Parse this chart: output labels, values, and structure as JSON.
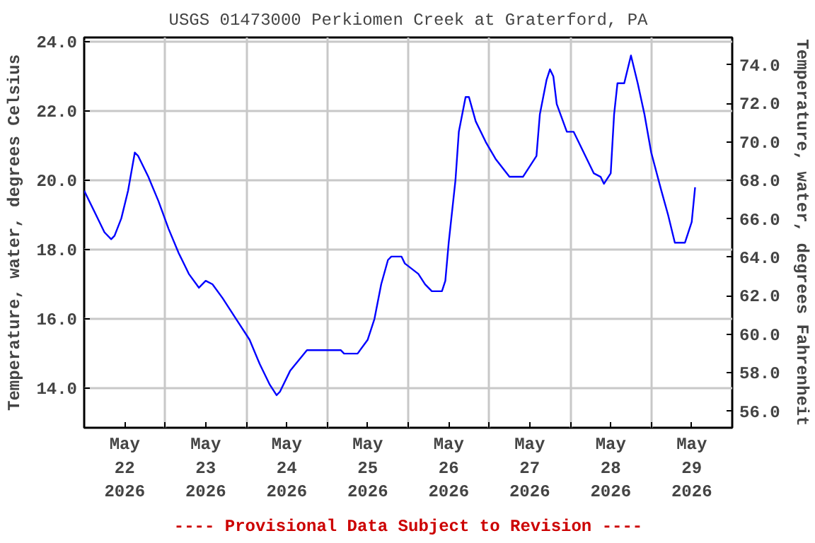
{
  "chart_data": {
    "type": "line",
    "title": "USGS 01473000 Perkiomen Creek at Graterford, PA",
    "ylabel": "Temperature, water, degrees Celsius",
    "y2label": "Temperature, water, degrees Fahrenheit",
    "annotations": [
      "---- Provisional Data Subject to Revision ----"
    ],
    "grid": true,
    "line_style": "solid",
    "xlim": [
      "2026-05-22T00:00",
      "2026-05-30T00:00"
    ],
    "xticks": [
      {
        "value": "2026-05-22T12:00",
        "label": "May\n22\n2026"
      },
      {
        "value": "2026-05-23T12:00",
        "label": "May\n23\n2026"
      },
      {
        "value": "2026-05-24T12:00",
        "label": "May\n24\n2026"
      },
      {
        "value": "2026-05-25T12:00",
        "label": "May\n25\n2026"
      },
      {
        "value": "2026-05-26T12:00",
        "label": "May\n26\n2026"
      },
      {
        "value": "2026-05-27T12:00",
        "label": "May\n27\n2026"
      },
      {
        "value": "2026-05-28T12:00",
        "label": "May\n28\n2026"
      },
      {
        "value": "2026-05-29T12:00",
        "label": "May\n29\n2026"
      },
      {
        "value": "2026-05-23T00:00",
        "label": null
      },
      {
        "value": "2026-05-24T00:00",
        "label": null
      },
      {
        "value": "2026-05-25T00:00",
        "label": null
      },
      {
        "value": "2026-05-26T00:00",
        "label": null
      },
      {
        "value": "2026-05-27T00:00",
        "label": null
      },
      {
        "value": "2026-05-28T00:00",
        "label": null
      },
      {
        "value": "2026-05-29T00:00",
        "label": null
      }
    ],
    "ylim": [
      12.86,
      24.12
    ],
    "yticks": [
      {
        "value": 14,
        "label": "14.0"
      },
      {
        "value": 16,
        "label": "16.0"
      },
      {
        "value": 18,
        "label": "18.0"
      },
      {
        "value": 20,
        "label": "20.0"
      },
      {
        "value": 22,
        "label": "22.0"
      },
      {
        "value": 24,
        "label": "24.0"
      }
    ],
    "y2lim": [
      55.15,
      75.42
    ],
    "y2ticks": [
      {
        "value": 56,
        "label": "56.0"
      },
      {
        "value": 58,
        "label": "58.0"
      },
      {
        "value": 60,
        "label": "60.0"
      },
      {
        "value": 62,
        "label": "62.0"
      },
      {
        "value": 64,
        "label": "64.0"
      },
      {
        "value": 66,
        "label": "66.0"
      },
      {
        "value": 68,
        "label": "68.0"
      },
      {
        "value": 70,
        "label": "70.0"
      },
      {
        "value": 72,
        "label": "72.0"
      },
      {
        "value": 74,
        "label": "74.0"
      }
    ],
    "series": [
      {
        "color": "#0000ff",
        "x": [
          "2026-05-22T00:00",
          "2026-05-22T03:00",
          "2026-05-22T06:00",
          "2026-05-22T08:00",
          "2026-05-22T09:00",
          "2026-05-22T11:00",
          "2026-05-22T13:00",
          "2026-05-22T15:00",
          "2026-05-22T16:00",
          "2026-05-22T19:00",
          "2026-05-22T22:00",
          "2026-05-23T01:00",
          "2026-05-23T04:00",
          "2026-05-23T07:00",
          "2026-05-23T10:00",
          "2026-05-23T12:00",
          "2026-05-23T14:00",
          "2026-05-23T17:00",
          "2026-05-23T21:00",
          "2026-05-24T01:00",
          "2026-05-24T04:00",
          "2026-05-24T07:00",
          "2026-05-24T09:00",
          "2026-05-24T10:00",
          "2026-05-24T13:00",
          "2026-05-24T18:00",
          "2026-05-24T20:00",
          "2026-05-25T04:00",
          "2026-05-25T05:00",
          "2026-05-25T09:00",
          "2026-05-25T12:00",
          "2026-05-25T14:00",
          "2026-05-25T16:00",
          "2026-05-25T18:00",
          "2026-05-25T19:00",
          "2026-05-25T22:00",
          "2026-05-25T23:00",
          "2026-05-26T03:00",
          "2026-05-26T05:00",
          "2026-05-26T07:00",
          "2026-05-26T10:00",
          "2026-05-26T11:00",
          "2026-05-26T12:00",
          "2026-05-26T14:00",
          "2026-05-26T15:00",
          "2026-05-26T17:00",
          "2026-05-26T18:00",
          "2026-05-26T20:00",
          "2026-05-26T23:00",
          "2026-05-27T02:00",
          "2026-05-27T06:00",
          "2026-05-27T10:00",
          "2026-05-27T12:00",
          "2026-05-27T14:00",
          "2026-05-27T15:00",
          "2026-05-27T17:00",
          "2026-05-27T18:00",
          "2026-05-27T19:00",
          "2026-05-27T20:00",
          "2026-05-27T23:00",
          "2026-05-28T01:00",
          "2026-05-28T04:00",
          "2026-05-28T07:00",
          "2026-05-28T09:00",
          "2026-05-28T10:00",
          "2026-05-28T12:00",
          "2026-05-28T13:00",
          "2026-05-28T14:00",
          "2026-05-28T16:00",
          "2026-05-28T18:00",
          "2026-05-28T20:00",
          "2026-05-28T22:00",
          "2026-05-29T00:00",
          "2026-05-29T03:00",
          "2026-05-29T05:00",
          "2026-05-29T07:00",
          "2026-05-29T10:00",
          "2026-05-29T12:00",
          "2026-05-29T13:00"
        ],
        "values": [
          19.7,
          19.1,
          18.5,
          18.3,
          18.4,
          18.9,
          19.7,
          20.8,
          20.7,
          20.1,
          19.4,
          18.6,
          17.9,
          17.3,
          16.9,
          17.1,
          17.0,
          16.6,
          16.0,
          15.4,
          14.7,
          14.1,
          13.8,
          13.9,
          14.5,
          15.1,
          15.1,
          15.1,
          15.0,
          15.0,
          15.4,
          16.0,
          17.0,
          17.7,
          17.8,
          17.8,
          17.6,
          17.3,
          17.0,
          16.8,
          16.8,
          17.1,
          18.2,
          20.0,
          21.4,
          22.4,
          22.4,
          21.7,
          21.1,
          20.6,
          20.1,
          20.1,
          20.4,
          20.7,
          21.9,
          22.9,
          23.2,
          23.0,
          22.2,
          21.4,
          21.4,
          20.8,
          20.2,
          20.1,
          19.9,
          20.2,
          21.9,
          22.8,
          22.8,
          23.6,
          22.8,
          21.9,
          20.8,
          19.7,
          19.0,
          18.2,
          18.2,
          18.8,
          19.8
        ]
      }
    ]
  }
}
